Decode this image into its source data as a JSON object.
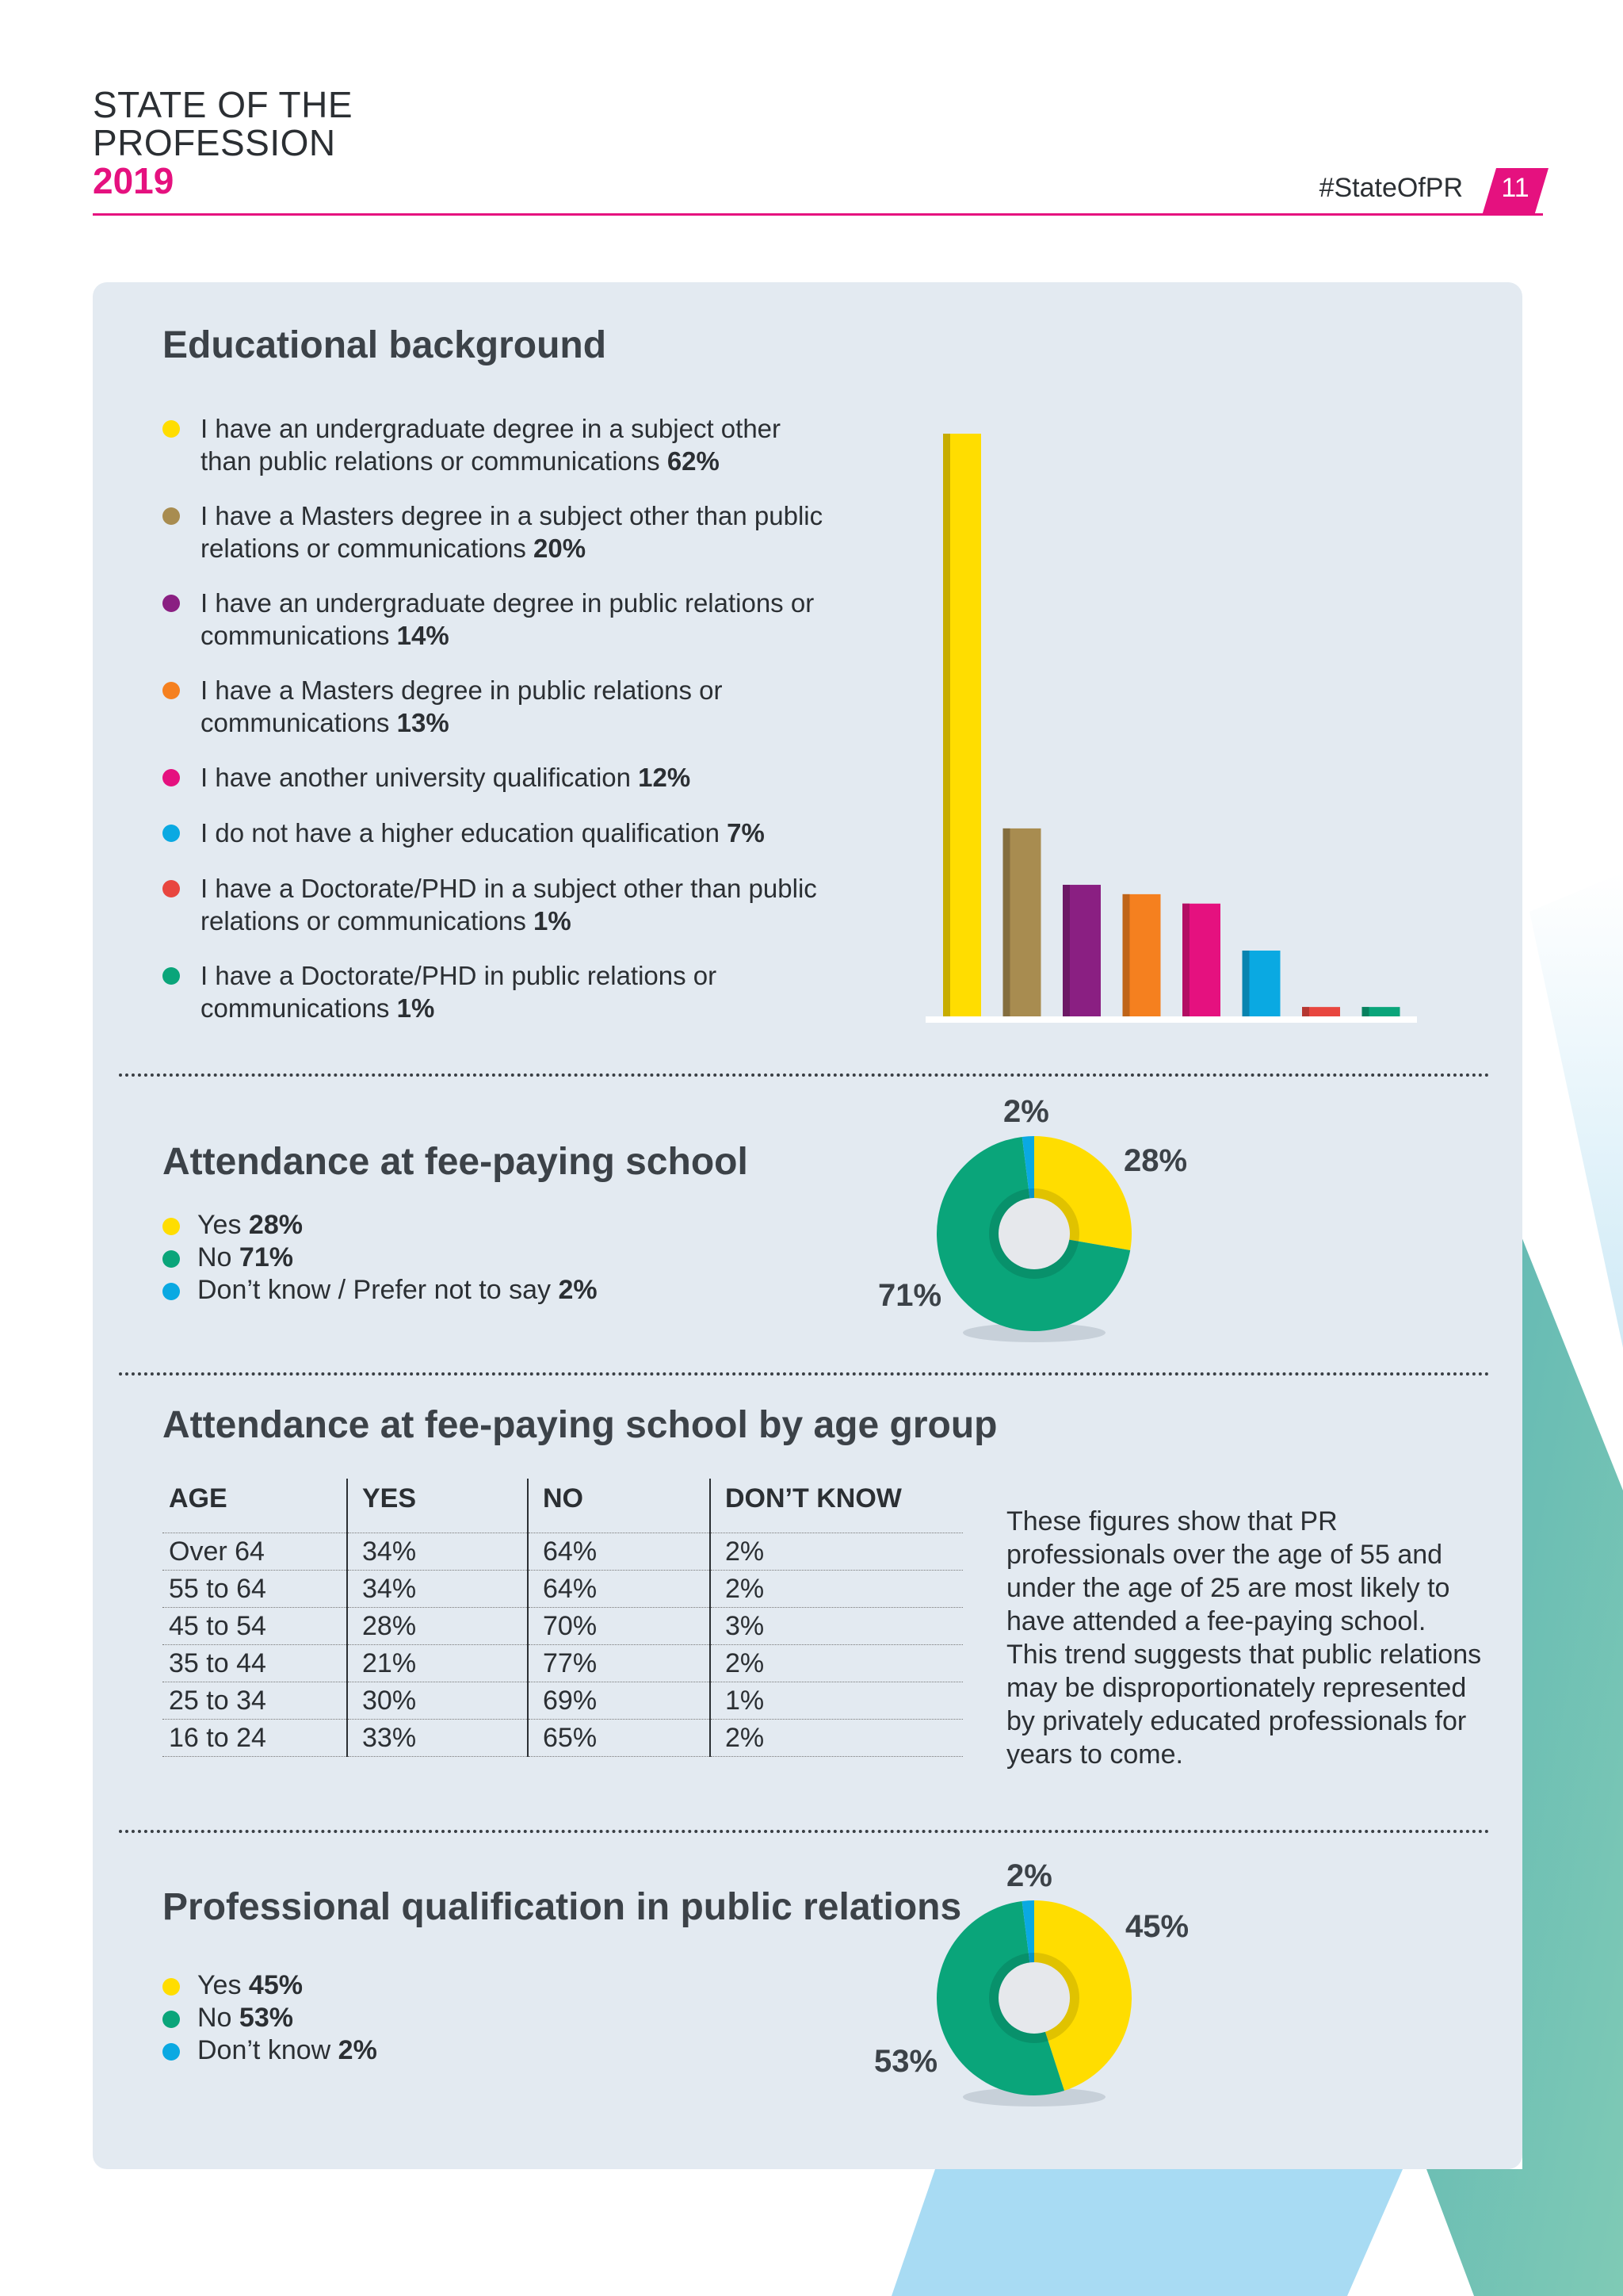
{
  "header": {
    "title_line1": "STATE OF THE",
    "title_line2": "PROFESSION",
    "year": "2019",
    "hashtag": "#StateOfPR",
    "page_number": "11"
  },
  "colors": {
    "accent": "#e5117f",
    "yellow": "#ffdd00",
    "khaki": "#a88c50",
    "purple": "#8a1f82",
    "orange": "#f5801f",
    "magenta": "#e5117f",
    "blue": "#0aa9e2",
    "red": "#e8463f",
    "green": "#0aa57a"
  },
  "education": {
    "title": "Educational background",
    "items": [
      {
        "text": "I have an undergraduate degree in a subject other than public relations or communications",
        "pct": "62%",
        "color": "#ffdd00"
      },
      {
        "text": "I have a Masters degree in a subject other than public relations or communications",
        "pct": "20%",
        "color": "#a88c50"
      },
      {
        "text": "I have an undergraduate degree in public relations or communications",
        "pct": "14%",
        "color": "#8a1f82"
      },
      {
        "text": "I have a Masters degree in public relations or communications",
        "pct": "13%",
        "color": "#f5801f"
      },
      {
        "text": "I have another university qualification",
        "pct": "12%",
        "color": "#e5117f"
      },
      {
        "text": "I do not have a higher education qualification",
        "pct": "7%",
        "color": "#0aa9e2"
      },
      {
        "text": "I have a Doctorate/PHD in a subject other than public relations or communications",
        "pct": "1%",
        "color": "#e8463f"
      },
      {
        "text": "I have a Doctorate/PHD in public relations or communications",
        "pct": "1%",
        "color": "#0aa57a"
      }
    ]
  },
  "chart_data": [
    {
      "type": "bar",
      "categories": [
        "Undergraduate degree other subject",
        "Masters other subject",
        "Undergraduate degree PR/comms",
        "Masters PR/comms",
        "Another university qualification",
        "No higher education qualification",
        "Doctorate/PHD other subject",
        "Doctorate/PHD PR/comms"
      ],
      "values": [
        62,
        20,
        14,
        13,
        12,
        7,
        1,
        1
      ],
      "colors": [
        "#ffdd00",
        "#a88c50",
        "#8a1f82",
        "#f5801f",
        "#e5117f",
        "#0aa9e2",
        "#e8463f",
        "#0aa57a"
      ],
      "ylim": [
        0,
        62
      ],
      "grid": false,
      "title": ""
    },
    {
      "type": "pie",
      "title": "Attendance at fee-paying school",
      "labels": [
        "Yes",
        "No",
        "Don't know / Prefer not to say"
      ],
      "values": [
        28,
        71,
        2
      ],
      "colors": [
        "#ffdd00",
        "#0aa57a",
        "#0aa9e2"
      ],
      "donut": true
    },
    {
      "type": "table",
      "title": "Attendance at fee-paying school by age group",
      "columns": [
        "AGE",
        "YES",
        "NO",
        "DON'T KNOW"
      ],
      "rows": [
        [
          "Over 64",
          "34%",
          "64%",
          "2%"
        ],
        [
          "55 to 64",
          "34%",
          "64%",
          "2%"
        ],
        [
          "45 to 54",
          "28%",
          "70%",
          "3%"
        ],
        [
          "35 to 44",
          "21%",
          "77%",
          "2%"
        ],
        [
          "25 to 34",
          "30%",
          "69%",
          "1%"
        ],
        [
          "16 to 24",
          "33%",
          "65%",
          "2%"
        ]
      ]
    },
    {
      "type": "pie",
      "title": "Professional qualification in public relations",
      "labels": [
        "Yes",
        "No",
        "Don't know"
      ],
      "values": [
        45,
        53,
        2
      ],
      "colors": [
        "#ffdd00",
        "#0aa57a",
        "#0aa9e2"
      ],
      "donut": true
    }
  ],
  "fee_paying": {
    "title": "Attendance at fee-paying school",
    "legend": [
      {
        "label": "Yes",
        "pct": "28%",
        "color": "#ffdd00"
      },
      {
        "label": "No",
        "pct": "71%",
        "color": "#0aa57a"
      },
      {
        "label": "Don’t know / Prefer not to say",
        "pct": "2%",
        "color": "#0aa9e2"
      }
    ],
    "pie_labels": {
      "yes": "28%",
      "no": "71%",
      "dk": "2%"
    }
  },
  "age_group": {
    "title": "Attendance at fee-paying school by age group",
    "headers": [
      "AGE",
      "YES",
      "NO",
      "DON’T KNOW"
    ],
    "rows": [
      [
        "Over 64",
        "34%",
        "64%",
        "2%"
      ],
      [
        "55 to 64",
        "34%",
        "64%",
        "2%"
      ],
      [
        "45 to 54",
        "28%",
        "70%",
        "3%"
      ],
      [
        "35 to 44",
        "21%",
        "77%",
        "2%"
      ],
      [
        "25 to 34",
        "30%",
        "69%",
        "1%"
      ],
      [
        "16 to 24",
        "33%",
        "65%",
        "2%"
      ]
    ],
    "note": "These figures show that PR professionals over the age of 55 and under the age of 25 are most likely to have attended a fee-paying school. This trend suggests that public relations may be disproportionately represented by privately educated professionals for years to come."
  },
  "prof_qual": {
    "title": "Professional qualification in public relations",
    "legend": [
      {
        "label": "Yes",
        "pct": "45%",
        "color": "#ffdd00"
      },
      {
        "label": "No",
        "pct": "53%",
        "color": "#0aa57a"
      },
      {
        "label": "Don’t know",
        "pct": "2%",
        "color": "#0aa9e2"
      }
    ],
    "pie_labels": {
      "yes": "45%",
      "no": "53%",
      "dk": "2%"
    }
  }
}
